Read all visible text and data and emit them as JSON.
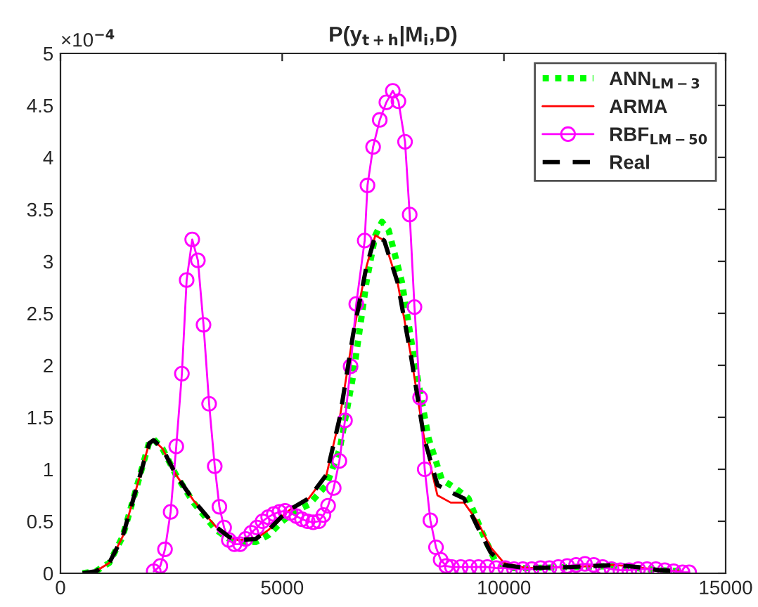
{
  "chart_data": {
    "type": "line",
    "title": "P(y$_{t+h}$|M$_{i}$,D)",
    "annotations": [
      "×10$^{−4}$"
    ],
    "xlim": [
      0,
      15000
    ],
    "xticks": [
      0,
      5000,
      10000,
      15000
    ],
    "ylim": [
      0,
      5
    ],
    "yticks": [
      0,
      0.5,
      1,
      1.5,
      2,
      2.5,
      3,
      3.5,
      4,
      4.5,
      5
    ],
    "grid": false,
    "legend": "top right",
    "series": [
      {
        "name": "ANN$_{LM−3}$",
        "color": "#00ff00",
        "line_style": "dotted",
        "marker": "none",
        "x": [
          500,
          800,
          1100,
          1400,
          1700,
          2000,
          2100,
          2300,
          2600,
          3000,
          3500,
          3800,
          4100,
          4400,
          4700,
          5000,
          5300,
          5600,
          6000,
          6300,
          6600,
          6900,
          7100,
          7250,
          7400,
          7700,
          8000,
          8300,
          8600,
          8900,
          9200,
          9500,
          9800,
          10100,
          10500,
          11500,
          12500,
          13000,
          13500,
          14000
        ],
        "values": [
          0,
          0.02,
          0.1,
          0.35,
          0.8,
          1.26,
          1.29,
          1.2,
          0.95,
          0.68,
          0.42,
          0.33,
          0.3,
          0.3,
          0.37,
          0.5,
          0.6,
          0.66,
          0.85,
          1.2,
          1.9,
          2.8,
          3.25,
          3.38,
          3.3,
          2.8,
          2.0,
          1.3,
          0.9,
          0.82,
          0.72,
          0.4,
          0.12,
          0.05,
          0.05,
          0.06,
          0.07,
          0.05,
          0.03,
          0.02
        ]
      },
      {
        "name": "ARMA",
        "color": "#ff0000",
        "line_style": "solid",
        "marker": "none",
        "x": [
          500,
          800,
          1100,
          1400,
          1700,
          2000,
          2100,
          2300,
          2600,
          3000,
          3500,
          3800,
          4000,
          4400,
          4700,
          5000,
          5200,
          5600,
          6000,
          6300,
          6600,
          6900,
          7100,
          7300,
          7600,
          7900,
          8200,
          8500,
          8800,
          9100,
          9400,
          9700,
          10000,
          10500,
          11500,
          12500,
          13000,
          13500,
          14000
        ],
        "values": [
          0,
          0.02,
          0.1,
          0.35,
          0.8,
          1.25,
          1.28,
          1.2,
          0.95,
          0.7,
          0.45,
          0.35,
          0.32,
          0.33,
          0.42,
          0.55,
          0.62,
          0.72,
          0.95,
          1.5,
          2.3,
          2.95,
          3.25,
          3.2,
          2.8,
          2.1,
          1.3,
          0.75,
          0.68,
          0.68,
          0.5,
          0.25,
          0.1,
          0.05,
          0.06,
          0.08,
          0.06,
          0.03,
          0.02
        ]
      },
      {
        "name": "RBF$_{LM−50}$",
        "color": "#ff00ff",
        "line_style": "solid",
        "marker": "circle",
        "x": [
          2103,
          2252,
          2357,
          2484,
          2611,
          2738,
          2845,
          2971,
          3099,
          3226,
          3352,
          3479,
          3584,
          3690,
          3796,
          3923,
          4050,
          4177,
          4304,
          4431,
          4557,
          4684,
          4811,
          4938,
          5065,
          5192,
          5319,
          5446,
          5573,
          5699,
          5826,
          5931,
          6035,
          6162,
          6289,
          6416,
          6543,
          6670,
          6860,
          6923,
          7050,
          7200,
          7349,
          7494,
          7621,
          7770,
          7875,
          7983,
          8110,
          8214,
          8341,
          8468,
          8573,
          8700,
          8827,
          9027,
          9227,
          9427,
          9627,
          9827,
          10027,
          10227,
          10427,
          10627,
          10827,
          11027,
          11227,
          11427,
          11627,
          11827,
          12027,
          12227,
          12427,
          12627,
          12827,
          13027,
          13227,
          13427,
          13627,
          13827,
          14027,
          14177
        ],
        "values": [
          0.02,
          0.07,
          0.23,
          0.59,
          1.22,
          1.92,
          2.82,
          3.21,
          3.01,
          2.39,
          1.63,
          1.03,
          0.64,
          0.44,
          0.32,
          0.28,
          0.28,
          0.33,
          0.39,
          0.44,
          0.5,
          0.54,
          0.57,
          0.59,
          0.6,
          0.58,
          0.55,
          0.52,
          0.5,
          0.49,
          0.5,
          0.56,
          0.65,
          0.82,
          1.08,
          1.47,
          1.99,
          2.59,
          3.2,
          3.73,
          4.1,
          4.36,
          4.53,
          4.64,
          4.54,
          4.15,
          3.45,
          2.56,
          1.69,
          1.0,
          0.51,
          0.25,
          0.13,
          0.07,
          0.06,
          0.06,
          0.06,
          0.06,
          0.06,
          0.05,
          0.05,
          0.04,
          0.04,
          0.04,
          0.05,
          0.05,
          0.06,
          0.07,
          0.08,
          0.09,
          0.08,
          0.06,
          0.04,
          0.03,
          0.03,
          0.04,
          0.04,
          0.04,
          0.03,
          0.02,
          0.01,
          0.01
        ]
      },
      {
        "name": "Real",
        "color": "#000000",
        "line_style": "dashed",
        "marker": "none",
        "x": [
          500,
          800,
          1100,
          1400,
          1700,
          2000,
          2100,
          2300,
          2600,
          3000,
          3500,
          3800,
          4000,
          4400,
          4700,
          5000,
          5200,
          5600,
          6000,
          6300,
          6600,
          6900,
          7100,
          7300,
          7600,
          7900,
          8200,
          8500,
          8800,
          9100,
          9400,
          9700,
          10000,
          10500,
          11500,
          12500,
          13000,
          13500,
          14000
        ],
        "values": [
          0,
          0.02,
          0.1,
          0.35,
          0.8,
          1.25,
          1.28,
          1.2,
          0.95,
          0.7,
          0.45,
          0.35,
          0.32,
          0.33,
          0.42,
          0.55,
          0.62,
          0.72,
          0.95,
          1.5,
          2.3,
          2.95,
          3.25,
          3.2,
          2.8,
          2.1,
          1.3,
          0.85,
          0.78,
          0.72,
          0.45,
          0.2,
          0.08,
          0.05,
          0.06,
          0.08,
          0.06,
          0.03,
          0.02
        ]
      }
    ]
  }
}
